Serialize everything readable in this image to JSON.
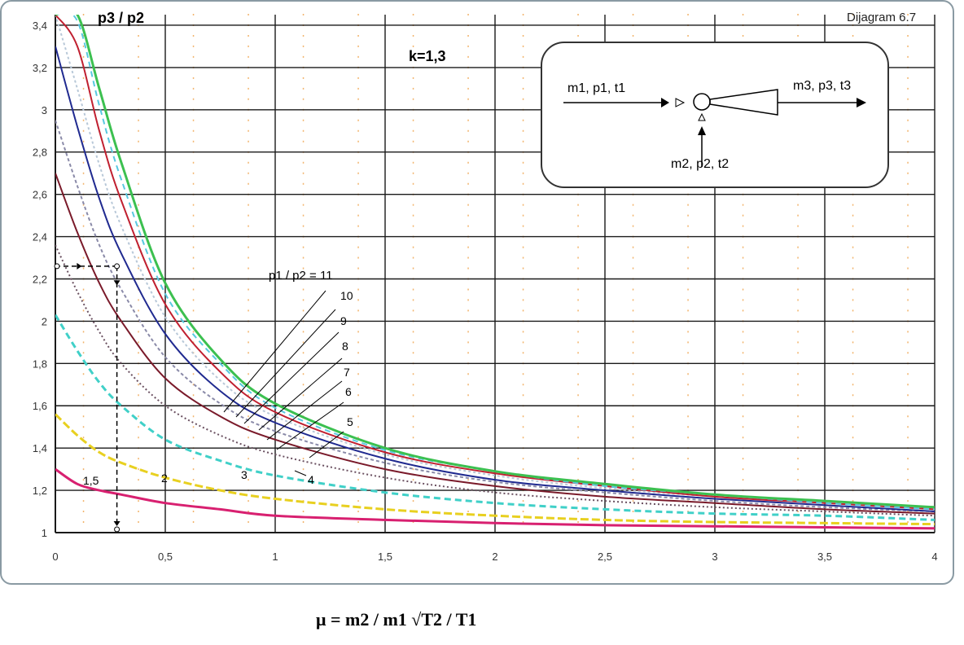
{
  "diagram_label": "Dijagram 6.7",
  "k_label": "k=1,3",
  "ylabel": "p3 / p2",
  "xlabel": "μ = m2 / m1 √T2 / T1",
  "schematic": {
    "inlet1": "m1, p1, t1",
    "inlet2": "m2,  p2, t2",
    "outlet": "m3, p3, t3"
  },
  "curve_title": "p1 / p2 = 11",
  "colors": {
    "grid": "#1a1a1a",
    "dots": "#f2b36b",
    "frame": "#8a9aa3"
  },
  "chart_data": {
    "type": "line",
    "title": "Dijagram 6.7",
    "xlabel": "μ = m2 / m1 √T2 / T1",
    "ylabel": "p3 / p2",
    "xlim": [
      0,
      4
    ],
    "ylim": [
      1,
      3.45
    ],
    "x_ticks": [
      "0",
      "0,5",
      "1",
      "1,5",
      "2",
      "2,5",
      "3",
      "3,5",
      "4"
    ],
    "y_ticks": [
      "1",
      "1,2",
      "1,4",
      "1,6",
      "1,8",
      "2",
      "2,2",
      "2,4",
      "2,6",
      "2,8",
      "3",
      "3,2",
      "3,4"
    ],
    "grid": true,
    "x": [
      0,
      0.1,
      0.2,
      0.3,
      0.5,
      0.75,
      1,
      1.5,
      2,
      2.5,
      3,
      3.5,
      4
    ],
    "series": [
      {
        "name": "1,5",
        "color": "#d82070",
        "values": [
          1.3,
          1.23,
          1.2,
          1.18,
          1.14,
          1.11,
          1.08,
          1.06,
          1.045,
          1.035,
          1.03,
          1.025,
          1.02
        ]
      },
      {
        "name": "2",
        "color": "#e8d020",
        "values": [
          1.56,
          1.46,
          1.38,
          1.33,
          1.26,
          1.2,
          1.16,
          1.11,
          1.08,
          1.06,
          1.05,
          1.045,
          1.04
        ]
      },
      {
        "name": "3",
        "color": "#40d0c8",
        "values": [
          2.03,
          1.86,
          1.71,
          1.6,
          1.44,
          1.34,
          1.27,
          1.19,
          1.14,
          1.11,
          1.09,
          1.08,
          1.06
        ]
      },
      {
        "name": "4",
        "color": "#6a5060",
        "values": [
          2.36,
          2.14,
          1.95,
          1.8,
          1.6,
          1.46,
          1.37,
          1.26,
          1.19,
          1.15,
          1.12,
          1.1,
          1.08
        ]
      },
      {
        "name": "5",
        "color": "#7a1a2a",
        "values": [
          2.7,
          2.42,
          2.18,
          2.0,
          1.73,
          1.55,
          1.44,
          1.3,
          1.22,
          1.17,
          1.14,
          1.11,
          1.09
        ]
      },
      {
        "name": "6",
        "color": "#8a8aa8",
        "values": [
          2.95,
          2.64,
          2.36,
          2.15,
          1.83,
          1.61,
          1.48,
          1.33,
          1.24,
          1.19,
          1.15,
          1.12,
          1.1
        ]
      },
      {
        "name": "7",
        "color": "#202a90",
        "values": [
          3.3,
          2.92,
          2.58,
          2.32,
          1.94,
          1.67,
          1.52,
          1.35,
          1.25,
          1.2,
          1.16,
          1.13,
          1.1
        ]
      },
      {
        "name": "8",
        "color": "#b8c8d8",
        "values": [
          3.45,
          3.1,
          2.74,
          2.45,
          2.02,
          1.72,
          1.55,
          1.37,
          1.27,
          1.21,
          1.17,
          1.14,
          1.11
        ]
      },
      {
        "name": "9",
        "color": "#c02030",
        "values": [
          3.45,
          3.3,
          2.9,
          2.57,
          2.08,
          1.76,
          1.57,
          1.38,
          1.28,
          1.22,
          1.17,
          1.14,
          1.11
        ]
      },
      {
        "name": "10",
        "color": "#58c8e0",
        "values": [
          3.45,
          3.42,
          3.02,
          2.67,
          2.13,
          1.8,
          1.59,
          1.39,
          1.29,
          1.22,
          1.18,
          1.14,
          1.11
        ]
      },
      {
        "name": "11",
        "color": "#3cc050",
        "values": [
          3.45,
          3.45,
          3.1,
          2.75,
          2.18,
          1.82,
          1.61,
          1.4,
          1.29,
          1.23,
          1.18,
          1.15,
          1.12
        ]
      }
    ],
    "example_construction": {
      "x": 0.28,
      "y": 2.26
    }
  }
}
